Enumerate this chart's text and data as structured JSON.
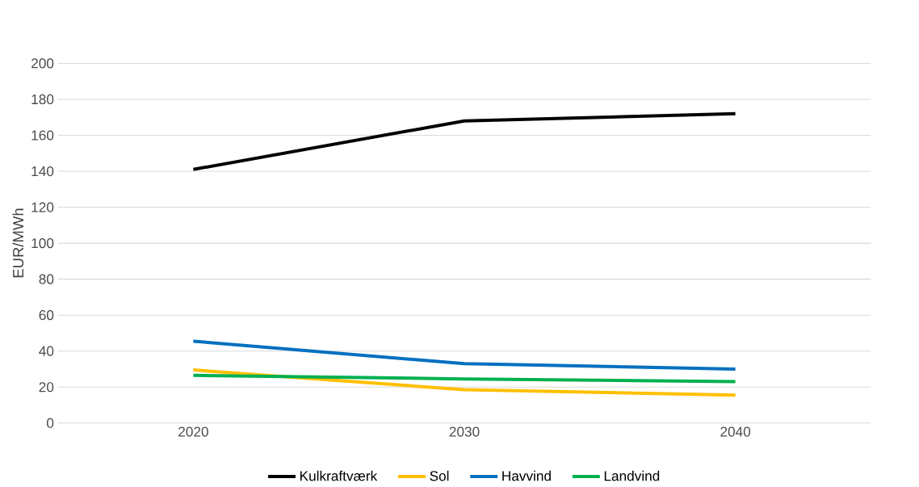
{
  "chart_data": {
    "type": "line",
    "ylabel": "EUR/MWh",
    "categories": [
      "2020",
      "2030",
      "2040"
    ],
    "series": [
      {
        "name": "Kulkraftværk",
        "color": "#000000",
        "values": [
          141,
          168,
          172
        ]
      },
      {
        "name": "Sol",
        "color": "#ffc000",
        "values": [
          29.5,
          18.5,
          15.5
        ]
      },
      {
        "name": "Havvind",
        "color": "#0070c0",
        "values": [
          45.5,
          33,
          30
        ]
      },
      {
        "name": "Landvind",
        "color": "#00b050",
        "values": [
          26.5,
          24.5,
          23
        ]
      }
    ],
    "ylim": [
      0,
      200
    ],
    "yticks": [
      0,
      20,
      40,
      60,
      80,
      100,
      120,
      140,
      160,
      180,
      200
    ],
    "grid": "y",
    "legend": "bottom",
    "marker": "none",
    "line_style": "solid"
  }
}
